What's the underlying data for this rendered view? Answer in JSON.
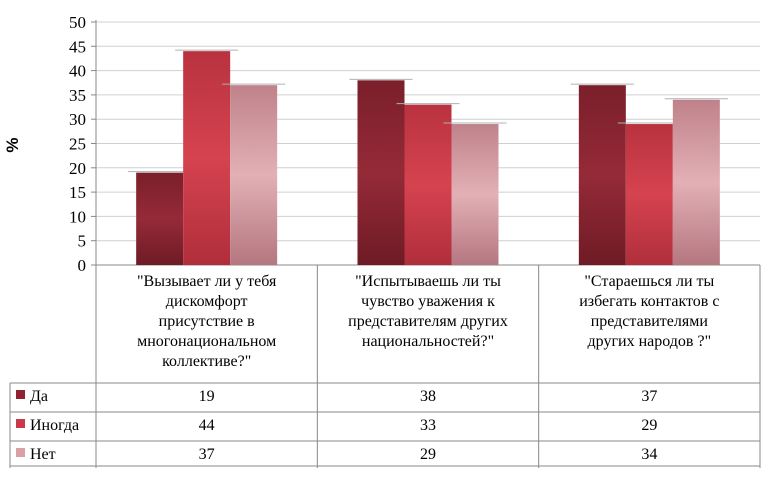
{
  "chart_data": {
    "type": "bar",
    "ylabel": "%",
    "ylim": [
      0,
      50
    ],
    "ytick_step": 5,
    "grid": true,
    "legend_placement": "data-table",
    "categories": [
      [
        "\"Вызывает ли у тебя",
        "дискомфорт",
        "присутствие в",
        "многонациональном",
        "коллективе?\""
      ],
      [
        "\"Испытываешь ли ты",
        "чувство уважения к",
        "представителям  других",
        "национальностей?\""
      ],
      [
        "\"Стараешься ли ты",
        "избегать  контактов с",
        "представителями",
        "других  народов ?\""
      ]
    ],
    "series": [
      {
        "name": "Да",
        "values": [
          19,
          38,
          37
        ],
        "color": "#8e2432"
      },
      {
        "name": "Иногда",
        "values": [
          44,
          33,
          29
        ],
        "color": "#c93a48"
      },
      {
        "name": "Нет",
        "values": [
          37,
          29,
          34
        ],
        "color": "#d9a0a6"
      }
    ]
  }
}
